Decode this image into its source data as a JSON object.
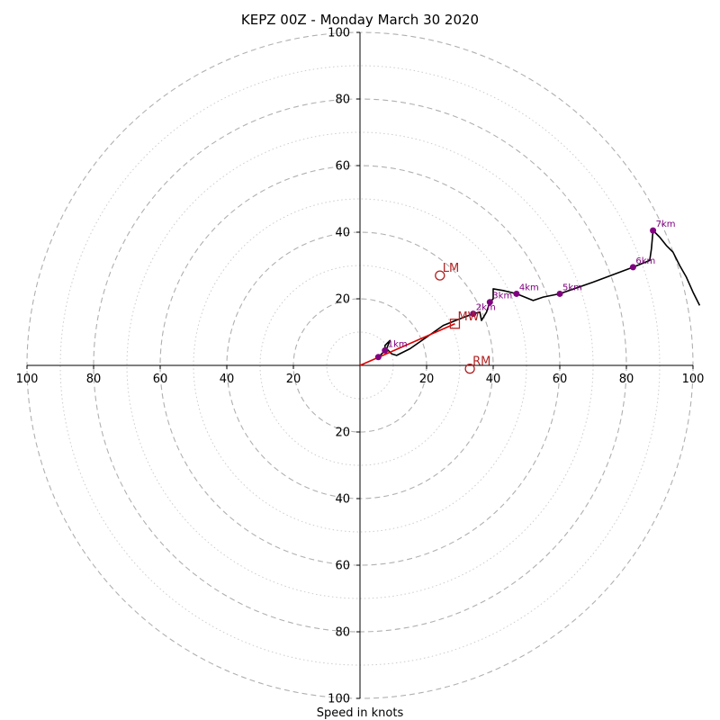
{
  "chart_data": {
    "type": "scatter",
    "title": "KEPZ 00Z - Monday March 30 2020",
    "xlabel": "Speed in knots",
    "ylabel": "",
    "xlim": [
      -100,
      100
    ],
    "ylim": [
      -100,
      100
    ],
    "major_rings": [
      20,
      40,
      60,
      80,
      100
    ],
    "minor_rings": [
      10,
      30,
      50,
      70,
      90
    ],
    "grid": true,
    "tick_labels": {
      "x_left": [
        "100",
        "80",
        "60",
        "40",
        "20"
      ],
      "x_right": [
        "20",
        "40",
        "60",
        "80",
        "100"
      ],
      "y_top": [
        "100",
        "80",
        "60",
        "40",
        "20"
      ],
      "y_bottom": [
        "20",
        "40",
        "60",
        "80",
        "100"
      ]
    },
    "hodograph_trace": [
      {
        "u": 5.5,
        "v": 2.5
      },
      {
        "u": 7.5,
        "v": 4.5
      },
      {
        "u": 7.5,
        "v": 6
      },
      {
        "u": 9,
        "v": 7.5
      },
      {
        "u": 8,
        "v": 5
      },
      {
        "u": 9.5,
        "v": 3.5
      },
      {
        "u": 11,
        "v": 3
      },
      {
        "u": 15,
        "v": 5
      },
      {
        "u": 20,
        "v": 8.5
      },
      {
        "u": 25,
        "v": 12
      },
      {
        "u": 30,
        "v": 14
      },
      {
        "u": 34,
        "v": 15.5
      },
      {
        "u": 36,
        "v": 16
      },
      {
        "u": 36.5,
        "v": 13.5
      },
      {
        "u": 38,
        "v": 16
      },
      {
        "u": 39,
        "v": 19
      },
      {
        "u": 40,
        "v": 20
      },
      {
        "u": 40,
        "v": 23
      },
      {
        "u": 43,
        "v": 22.5
      },
      {
        "u": 47,
        "v": 21.5
      },
      {
        "u": 52,
        "v": 19.5
      },
      {
        "u": 55,
        "v": 20.5
      },
      {
        "u": 60,
        "v": 21.5
      },
      {
        "u": 70,
        "v": 25
      },
      {
        "u": 82,
        "v": 29.5
      },
      {
        "u": 87,
        "v": 31.5
      },
      {
        "u": 87.5,
        "v": 35
      },
      {
        "u": 88,
        "v": 40.5
      },
      {
        "u": 90,
        "v": 38.5
      },
      {
        "u": 92,
        "v": 36
      },
      {
        "u": 94,
        "v": 34
      },
      {
        "u": 96,
        "v": 30
      },
      {
        "u": 98,
        "v": 26.5
      },
      {
        "u": 100,
        "v": 22
      },
      {
        "u": 102,
        "v": 18
      }
    ],
    "height_markers": [
      {
        "label": "",
        "u": 5.5,
        "v": 2.5
      },
      {
        "label": "1km",
        "u": 7.5,
        "v": 4.5
      },
      {
        "label": "2km",
        "u": 34,
        "v": 15.5
      },
      {
        "label": "3km",
        "u": 39,
        "v": 19
      },
      {
        "label": "4km",
        "u": 47,
        "v": 21.5
      },
      {
        "label": "5km",
        "u": 60,
        "v": 21.5
      },
      {
        "label": "6km",
        "u": 82,
        "v": 29.5
      },
      {
        "label": "7km",
        "u": 88,
        "v": 40.5
      }
    ],
    "storm_motion_points": [
      {
        "label": "LM",
        "u": 24,
        "v": 27,
        "marker": "circle"
      },
      {
        "label": "MW",
        "u": 28.5,
        "v": 12.5,
        "marker": "square"
      },
      {
        "label": "RM",
        "u": 33,
        "v": -1,
        "marker": "circle"
      }
    ],
    "shear_vector": {
      "from": {
        "u": 0,
        "v": 0
      },
      "to": {
        "u": 28.5,
        "v": 12.5
      }
    },
    "colors": {
      "trace": "#000000",
      "markers": "#800080",
      "storm_motion": "#b22222",
      "shear": "#e00000",
      "major_grid": "#b0b0b0",
      "minor_grid": "#cccccc"
    }
  }
}
